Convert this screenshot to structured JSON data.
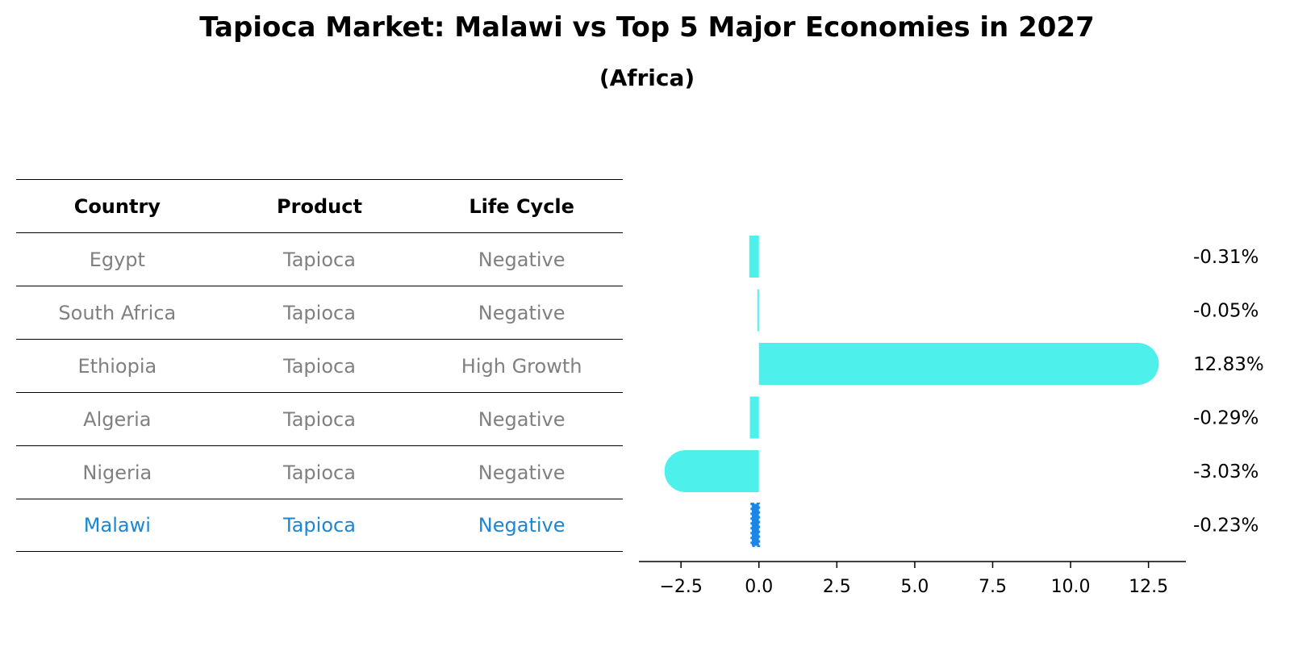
{
  "title": "Tapioca Market: Malawi vs Top 5 Major Economies in 2027",
  "subtitle": "(Africa)",
  "table": {
    "headers": [
      "Country",
      "Product",
      "Life Cycle"
    ],
    "rows": [
      {
        "country": "Egypt",
        "product": "Tapioca",
        "life_cycle": "Negative"
      },
      {
        "country": "South Africa",
        "product": "Tapioca",
        "life_cycle": "Negative"
      },
      {
        "country": "Ethiopia",
        "product": "Tapioca",
        "life_cycle": "High Growth"
      },
      {
        "country": "Algeria",
        "product": "Tapioca",
        "life_cycle": "Negative"
      },
      {
        "country": "Nigeria",
        "product": "Tapioca",
        "life_cycle": "Negative"
      },
      {
        "country": "Malawi",
        "product": "Tapioca",
        "life_cycle": "Negative"
      }
    ]
  },
  "chart_data": {
    "type": "bar",
    "orientation": "horizontal",
    "categories": [
      "Egypt",
      "South Africa",
      "Ethiopia",
      "Algeria",
      "Nigeria",
      "Malawi"
    ],
    "values": [
      -0.31,
      -0.05,
      12.83,
      -0.29,
      -3.03,
      -0.23
    ],
    "value_labels": [
      "-0.31%",
      "-0.05%",
      "12.83%",
      "-0.29%",
      "-3.03%",
      "-0.23%"
    ],
    "highlight": "Malawi",
    "xlim": [
      -3.85,
      13.7
    ],
    "xticks": [
      -2.5,
      0.0,
      2.5,
      5.0,
      7.5,
      10.0,
      12.5
    ],
    "xtick_labels": [
      "−2.5",
      "0.0",
      "2.5",
      "5.0",
      "7.5",
      "10.0",
      "12.5"
    ],
    "colors": {
      "bar": "#4df0ea",
      "highlight": "#1a86e8"
    }
  }
}
